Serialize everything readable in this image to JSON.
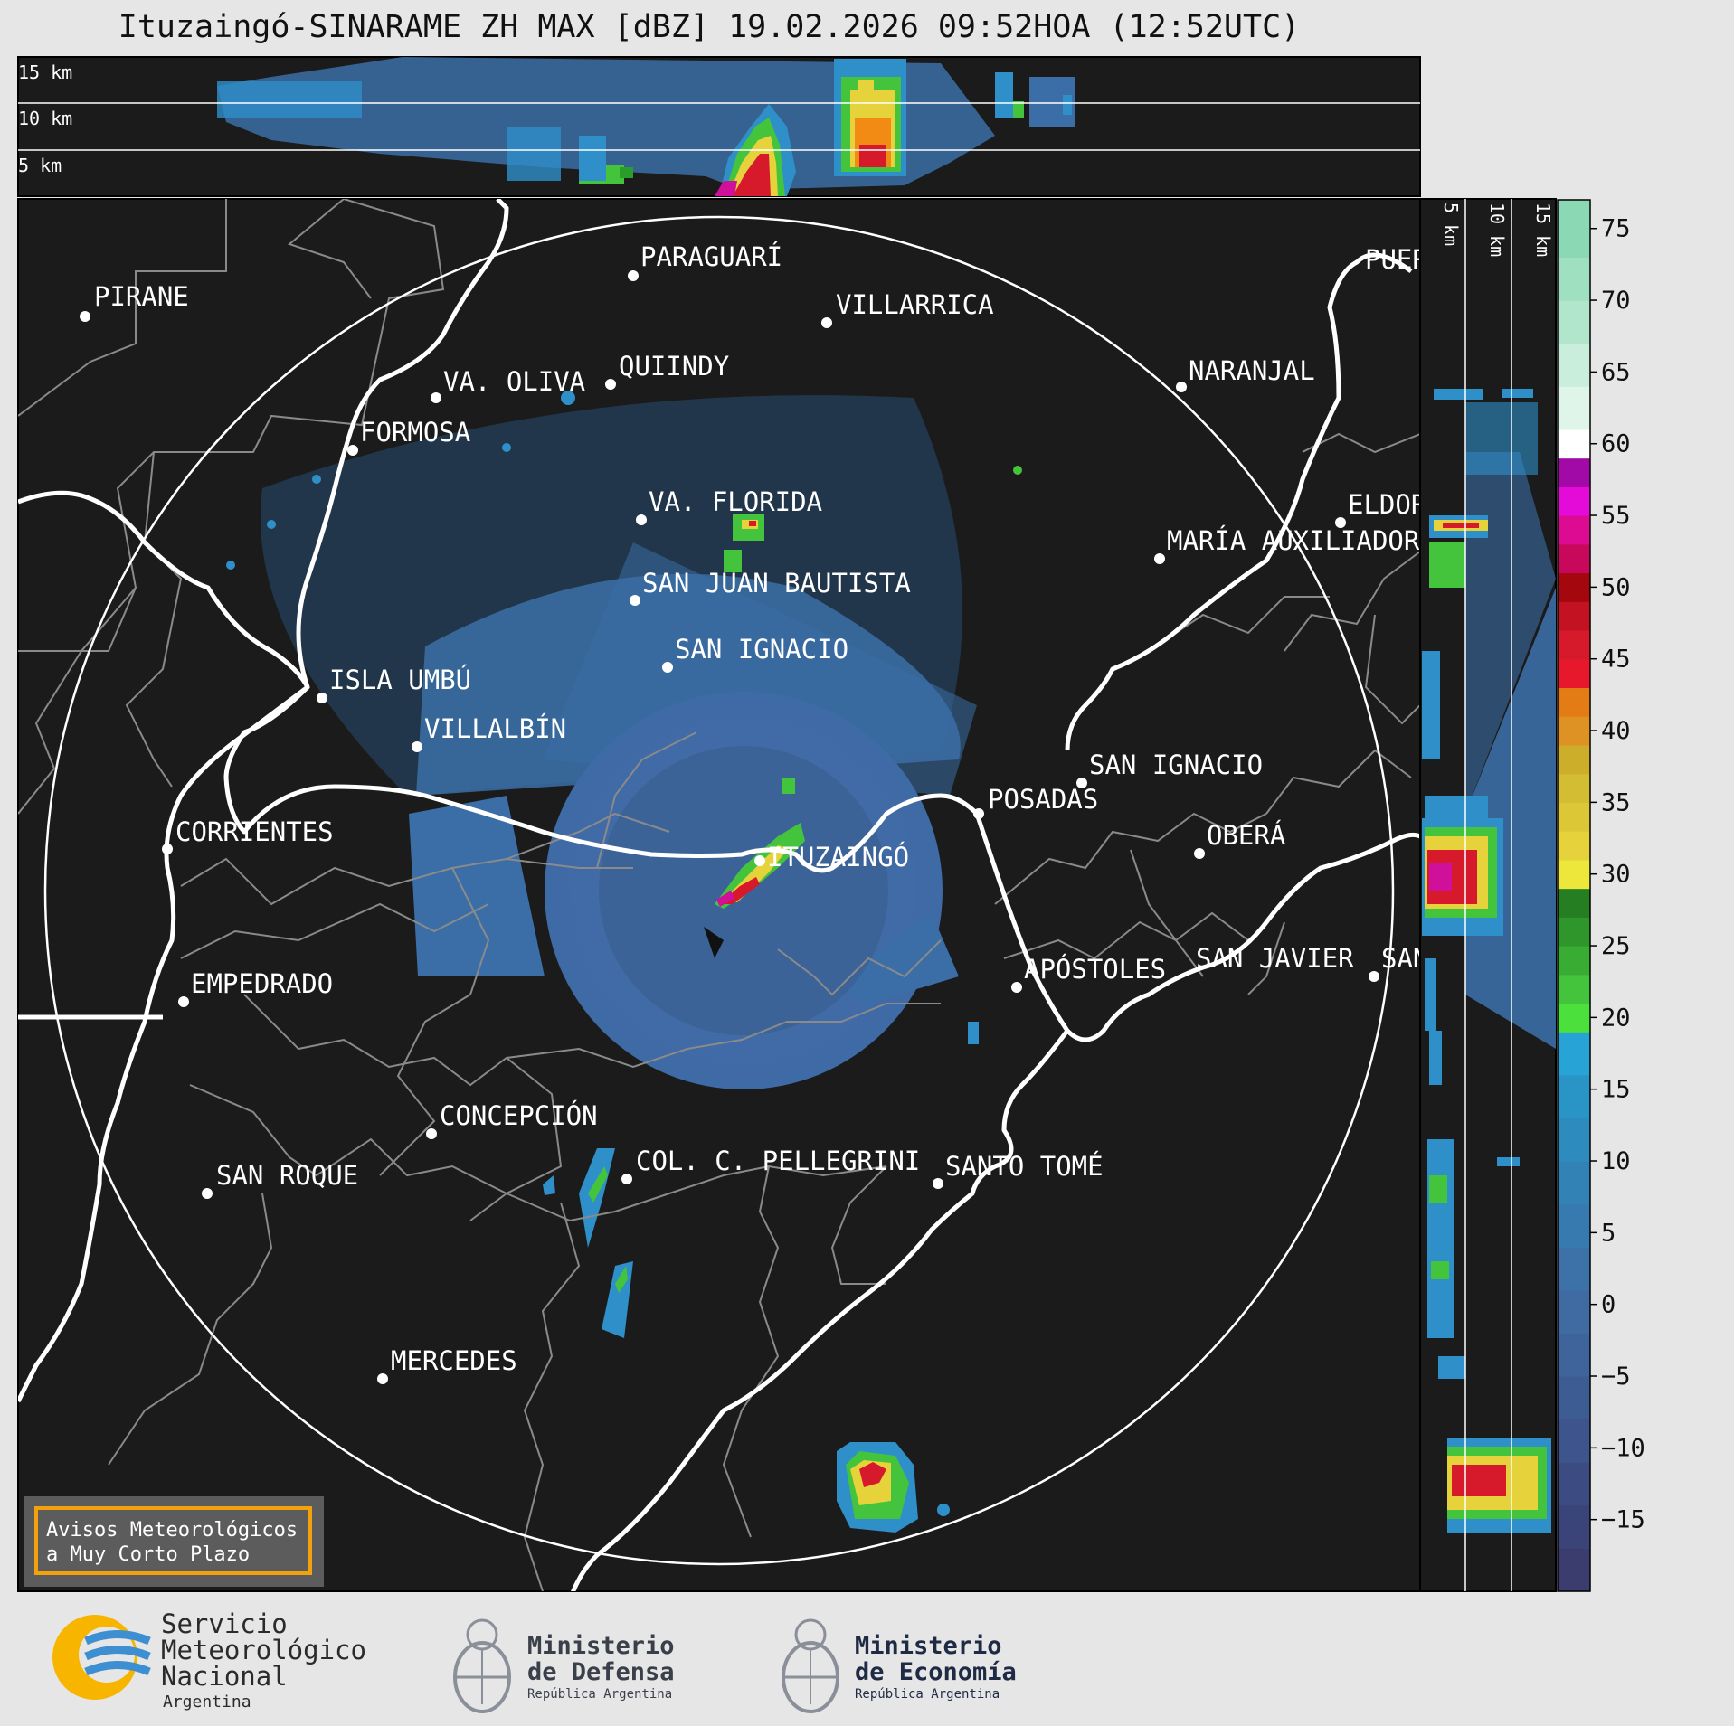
{
  "header": {
    "title": "Ituzaingó-SINARAME ZH MAX [dBZ] 19.02.2026 09:52HOA (12:52UTC)"
  },
  "top_panel": {
    "height_labels": [
      "15 km",
      "10 km",
      "5 km"
    ]
  },
  "side_panel": {
    "height_labels": [
      "5 km",
      "10 km",
      "15 km"
    ]
  },
  "colorbar": {
    "unit": "dBZ",
    "ticks": [
      "75",
      "70",
      "65",
      "60",
      "55",
      "50",
      "45",
      "40",
      "35",
      "30",
      "25",
      "20",
      "15",
      "10",
      "5",
      "0",
      "−5",
      "−10",
      "−15"
    ],
    "range": [
      -20,
      77
    ]
  },
  "places": [
    {
      "name": "PIRANE"
    },
    {
      "name": "PARAGUARÍ"
    },
    {
      "name": "VILLARRICA"
    },
    {
      "name": "VA. OLIVA"
    },
    {
      "name": "QUIINDY"
    },
    {
      "name": "NARANJAL"
    },
    {
      "name": "FORMOSA"
    },
    {
      "name": "VA. FLORIDA"
    },
    {
      "name": "ELDORADO"
    },
    {
      "name": "MARÍA AUXILIADORA"
    },
    {
      "name": "SAN JUAN BAUTISTA"
    },
    {
      "name": "SAN IGNACIO"
    },
    {
      "name": "ISLA UMBÚ"
    },
    {
      "name": "VILLALBÍN"
    },
    {
      "name": "SAN IGNACIO"
    },
    {
      "name": "POSADAS"
    },
    {
      "name": "CORRIENTES"
    },
    {
      "name": "ITUZAINGÓ"
    },
    {
      "name": "OBERÁ"
    },
    {
      "name": "APÓSTOLES"
    },
    {
      "name": "SAN JAVIER"
    },
    {
      "name": "SAN"
    },
    {
      "name": "EMPEDRADO"
    },
    {
      "name": "CONCEPCIÓN"
    },
    {
      "name": "COL. C. PELLEGRINI"
    },
    {
      "name": "SANTO TOMÉ"
    },
    {
      "name": "SAN ROQUE"
    },
    {
      "name": "MERCEDES"
    },
    {
      "name": "PUERTO"
    }
  ],
  "warning_box": {
    "line1": "Avisos Meteorológicos",
    "line2": "a Muy Corto Plazo"
  },
  "logos": {
    "smn": {
      "line1": "Servicio",
      "line2": "Meteorológico",
      "line3": "Nacional",
      "line4": "Argentina"
    },
    "defensa": {
      "line1": "Ministerio",
      "line2": "de Defensa",
      "line3": "República Argentina"
    },
    "economia": {
      "line1": "Ministerio",
      "line2": "de Economía",
      "line3": "República Argentina"
    }
  },
  "colors": {
    "map_bg": "#1b1b1b",
    "page_bg": "#e6e6e6",
    "accent_orange": "#f4a20b",
    "smn_blue": "#3d8fd1",
    "smn_yellow": "#f7b500"
  }
}
